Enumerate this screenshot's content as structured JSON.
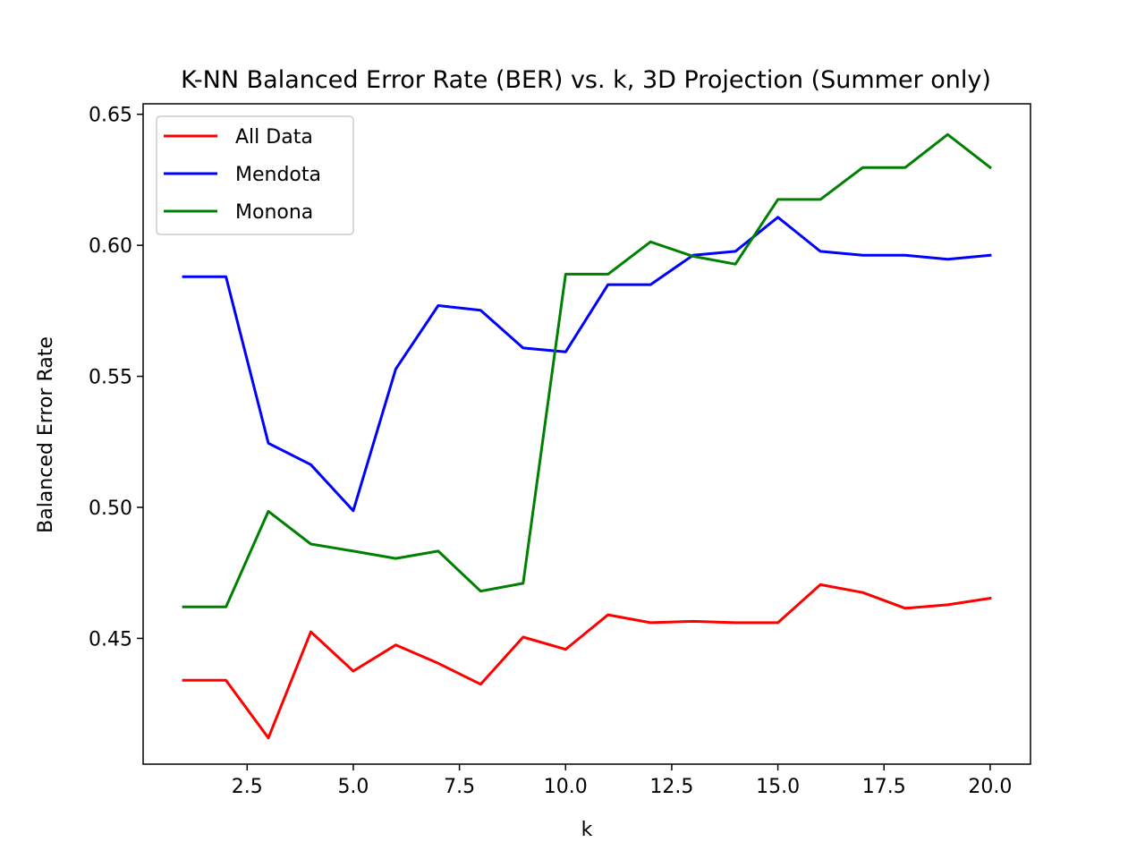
{
  "chart_data": {
    "type": "line",
    "title": "K-NN Balanced Error Rate (BER) vs. k, 3D Projection (Summer only)",
    "xlabel": "k",
    "ylabel": "Balanced Error Rate",
    "xlim": [
      0.05,
      20.95
    ],
    "ylim": [
      0.402,
      0.654
    ],
    "x_ticks": [
      2.5,
      5.0,
      7.5,
      10.0,
      12.5,
      15.0,
      17.5,
      20.0
    ],
    "x_tick_labels": [
      "2.5",
      "5.0",
      "7.5",
      "10.0",
      "12.5",
      "15.0",
      "17.5",
      "20.0"
    ],
    "y_ticks": [
      0.45,
      0.5,
      0.55,
      0.6,
      0.65
    ],
    "y_tick_labels": [
      "0.45",
      "0.50",
      "0.55",
      "0.60",
      "0.65"
    ],
    "grid": false,
    "legend_position": "top-left",
    "x": [
      1,
      2,
      3,
      4,
      5,
      6,
      7,
      8,
      9,
      10,
      11,
      12,
      13,
      14,
      15,
      16,
      17,
      18,
      19,
      20
    ],
    "series": [
      {
        "name": "All Data",
        "color": "#ff0000",
        "values": [
          0.434,
          0.434,
          0.412,
          0.4525,
          0.4375,
          0.4475,
          0.4405,
          0.4325,
          0.4505,
          0.4458,
          0.459,
          0.456,
          0.4565,
          0.456,
          0.456,
          0.4705,
          0.4675,
          0.4615,
          0.4628,
          0.4653
        ]
      },
      {
        "name": "Mendota",
        "color": "#0000ff",
        "values": [
          0.588,
          0.588,
          0.5245,
          0.5163,
          0.4987,
          0.5528,
          0.577,
          0.5752,
          0.5608,
          0.5593,
          0.585,
          0.585,
          0.5962,
          0.5977,
          0.6107,
          0.5977,
          0.5962,
          0.5962,
          0.5947,
          0.5962
        ]
      },
      {
        "name": "Monona",
        "color": "#008000",
        "values": [
          0.462,
          0.462,
          0.4985,
          0.486,
          0.4833,
          0.4805,
          0.4833,
          0.468,
          0.471,
          0.589,
          0.589,
          0.6013,
          0.5958,
          0.5928,
          0.6175,
          0.6175,
          0.6297,
          0.6297,
          0.6423,
          0.6297
        ]
      }
    ]
  }
}
